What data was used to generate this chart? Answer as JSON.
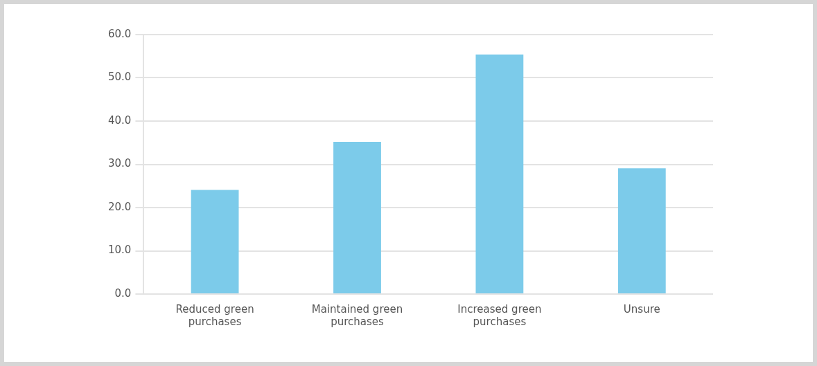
{
  "chart_data": {
    "type": "bar",
    "categories": [
      "Reduced green purchases",
      "Maintained green purchases",
      "Increased green purchases",
      "Unsure"
    ],
    "values": [
      24.1,
      35.2,
      55.4,
      29.1
    ],
    "color": "#7ccbea",
    "ylim": [
      0,
      60
    ],
    "yticks": [
      {
        "value": 0,
        "label": "0.0"
      },
      {
        "value": 10,
        "label": "10.0"
      },
      {
        "value": 20,
        "label": "20.0"
      },
      {
        "value": 30,
        "label": "30.0"
      },
      {
        "value": 40,
        "label": "40.0"
      },
      {
        "value": 50,
        "label": "50.0"
      },
      {
        "value": 60,
        "label": "60.0"
      }
    ],
    "grid": "y",
    "legend": false
  }
}
